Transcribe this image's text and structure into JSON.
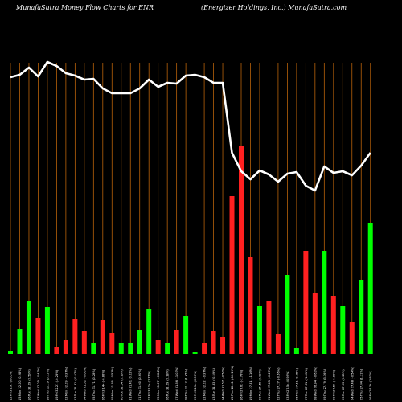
{
  "header": {
    "left": "MunafaSutra  Money Flow  Charts for ENR",
    "right": "(Energizer Holdings,  Inc.) MunafaSutra.com"
  },
  "chart_data": {
    "type": "bar",
    "ticker": "ENR",
    "colors": {
      "up": "#00ff00",
      "down": "#ff2020",
      "line": "#ffffff",
      "grid": "#b8620a",
      "background": "#000000"
    },
    "bars": [
      {
        "label": "Fri 12 Jul 2024",
        "height": 4,
        "dir": "up"
      },
      {
        "label": "Mon 15 Jul 2024",
        "height": 31,
        "dir": "up"
      },
      {
        "label": "Tue 16 Jul 2024",
        "height": 66,
        "dir": "up"
      },
      {
        "label": "Wed 17 Jul 2024",
        "height": 45,
        "dir": "down"
      },
      {
        "label": "Thu 18 Jul 2024",
        "height": 58,
        "dir": "up"
      },
      {
        "label": "Fri 19 Jul 2024",
        "height": 9,
        "dir": "down"
      },
      {
        "label": "Mon 22 Jul 2024",
        "height": 17,
        "dir": "down"
      },
      {
        "label": "Tue 23 Jul 2024",
        "height": 43,
        "dir": "down"
      },
      {
        "label": "Wed 24 Jul 2024",
        "height": 28,
        "dir": "down"
      },
      {
        "label": "Thu 25 Jul 2024",
        "height": 13,
        "dir": "up"
      },
      {
        "label": "Fri 26 Jul 2024",
        "height": 42,
        "dir": "down"
      },
      {
        "label": "Mon 29 Jul 2024",
        "height": 26,
        "dir": "down"
      },
      {
        "label": "Tue 30 Jul 2024",
        "height": 13,
        "dir": "up"
      },
      {
        "label": "Wed 31 Jul 2024",
        "height": 13,
        "dir": "up"
      },
      {
        "label": "Thu 01 Aug 2024",
        "height": 30,
        "dir": "up"
      },
      {
        "label": "Fri 02 Aug 2024",
        "height": 56,
        "dir": "up"
      },
      {
        "label": "Mon 05 Aug 2024",
        "height": 17,
        "dir": "down"
      },
      {
        "label": "Tue 06 Aug 2024",
        "height": 14,
        "dir": "up"
      },
      {
        "label": "Wed 07 Aug 2024",
        "height": 30,
        "dir": "down"
      },
      {
        "label": "Thu 08 Aug 2024",
        "height": 47,
        "dir": "up"
      },
      {
        "label": "Fri 09 Aug 2024",
        "height": 2,
        "dir": "up"
      },
      {
        "label": "Mon 12 Aug 2024",
        "height": 13,
        "dir": "down"
      },
      {
        "label": "Tue 13 Aug 2024",
        "height": 28,
        "dir": "down"
      },
      {
        "label": "Wed 14 Aug 2024",
        "height": 21,
        "dir": "down"
      },
      {
        "label": "Thu 15 Aug 2024",
        "height": 196,
        "dir": "down"
      },
      {
        "label": "Fri 16 Aug 2024",
        "height": 258,
        "dir": "down"
      },
      {
        "label": "Mon 19 Aug 2024",
        "height": 120,
        "dir": "down"
      },
      {
        "label": "Tue 20 Aug 2024",
        "height": 60,
        "dir": "up"
      },
      {
        "label": "Wed 21 Aug 2024",
        "height": 66,
        "dir": "down"
      },
      {
        "label": "Thu 22 Aug 2024",
        "height": 25,
        "dir": "down"
      },
      {
        "label": "Fri 23 Aug 2024",
        "height": 98,
        "dir": "up"
      },
      {
        "label": "Mon 26 Aug 2024",
        "height": 7,
        "dir": "up"
      },
      {
        "label": "Tue 27 Aug 2024",
        "height": 128,
        "dir": "down"
      },
      {
        "label": "Wed 28 Aug 2024",
        "height": 76,
        "dir": "down"
      },
      {
        "label": "Thu 29 Aug 2024",
        "height": 128,
        "dir": "up"
      },
      {
        "label": "Fri 30 Aug 2024",
        "height": 72,
        "dir": "down"
      },
      {
        "label": "Tue 03 Sep 2024",
        "height": 59,
        "dir": "up"
      },
      {
        "label": "Wed 04 Sep 2024",
        "height": 40,
        "dir": "down"
      },
      {
        "label": "Thu 05 Sep 2024",
        "height": 92,
        "dir": "up"
      },
      {
        "label": "Fri 06 Sep 2024",
        "height": 163,
        "dir": "up"
      }
    ],
    "line": [
      96,
      93,
      84,
      95,
      77,
      82,
      91,
      94,
      99,
      98,
      110,
      116,
      116,
      116,
      110,
      99,
      108,
      103,
      104,
      94,
      93,
      96,
      103,
      103,
      190,
      213,
      223,
      212,
      217,
      226,
      216,
      214,
      231,
      237,
      207,
      215,
      213,
      218,
      206,
      190
    ],
    "tick_labels": [
      "12 Fri 31.91 (0.05%)",
      "15 Mon 32.00 (0.28%)",
      "16 Tue 32.19 (0.59%)",
      "17 Wed 32.05 (-0.43%)",
      "18 Thu 32.29 (0.75%)",
      "19 Fri 32.21 (-0.25%)",
      "22 Mon 32.09 (-0.37%)",
      "23 Tue 31.81 (-0.87%)",
      "24 Wed 31.62 (-0.60%)",
      "25 Thu 31.71 (0.28%)",
      "26 Fri 31.44 (-0.85%)",
      "29 Mon 31.28 (-0.51%)",
      "30 Tue 31.34 (0.19%)",
      "31 Wed 31.41 (0.22%)",
      "01 Thu 31.60 (0.60%)",
      "02 Fri 32.14 (1.71%)",
      "05 Mon 31.87 (-0.84%)",
      "06 Tue 31.99 (0.38%)",
      "07 Wed 31.66 (-1.03%)",
      "08 Thu 32.12 (1.45%)",
      "09 Fri 32.14 (0.06%)",
      "12 Mon 32.02 (-0.37%)",
      "13 Tue 31.83 (-0.59%)",
      "14 Wed 31.67 (-0.50%)",
      "15 Thu 28.41 (-10.29%)",
      "16 Fri 27.63 (-2.75%)",
      "19 Mon 27.31 (-1.16%)",
      "20 Tue 27.58 (0.99%)",
      "21 Wed 27.45 (-0.47%)",
      "22 Thu 27.27 (-0.66%)",
      "23 Fri 27.54 (0.99%)",
      "26 Mon 27.61 (0.25%)",
      "27 Tue 27.11 (-1.81%)",
      "28 Wed 26.94 (-0.63%)",
      "29 Thu 27.79 (3.16%)",
      "30 Fri 27.56 (-0.83%)",
      "03 Tue 27.63 (0.25%)",
      "04 Wed 27.48 (-0.54%)",
      "05 Thu 27.84 (1.31%)",
      "06 Fri 28.36 (1.87%)"
    ]
  }
}
